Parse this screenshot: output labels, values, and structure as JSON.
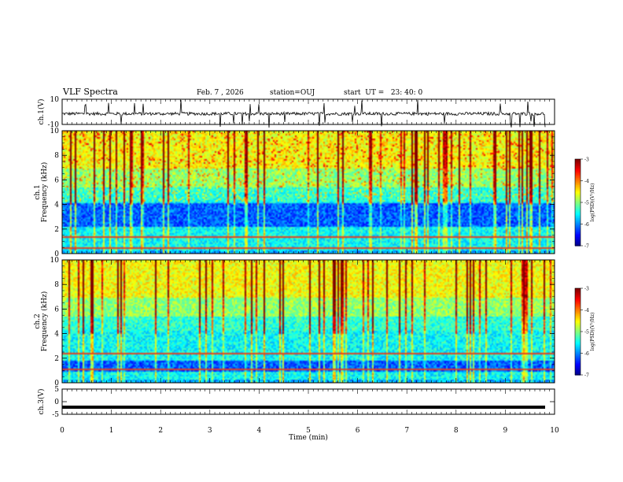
{
  "header": {
    "title": "VLF Spectra",
    "date": "Feb. 7 , 2026",
    "station": "station=OUJ",
    "start": "start  UT =   23: 40: 0"
  },
  "chart_data": [
    {
      "type": "line",
      "name": "ch1-waveform",
      "ylabel": "ch.1(V)",
      "ylim": [
        -10,
        10
      ],
      "yticks": [
        "10",
        "-10"
      ],
      "xlim": [
        0,
        10
      ],
      "baseline": -1.5,
      "noise_amplitude": 2.5
    },
    {
      "type": "heatmap",
      "name": "ch1-spectrogram",
      "ylabel_top": "ch.1",
      "ylabel": "Frequency (kHz)",
      "ylim": [
        0,
        10
      ],
      "yticks": [
        "0",
        "2",
        "4",
        "6",
        "8",
        "10"
      ],
      "xlim": [
        0,
        10
      ],
      "colorbar": {
        "label": "log(PSD)(V²/Hz)",
        "range": [
          -7,
          -3
        ],
        "ticks": [
          "-3",
          "-4",
          "-5",
          "-6",
          "-7"
        ]
      },
      "blue_band_kHz": [
        2.2,
        4.2
      ],
      "hum_lines_kHz": [
        0.5,
        1.4
      ]
    },
    {
      "type": "heatmap",
      "name": "ch2-spectrogram",
      "ylabel_top": "ch.2",
      "ylabel": "Frequency (kHz)",
      "ylim": [
        0,
        10
      ],
      "yticks": [
        "0",
        "2",
        "4",
        "6",
        "8",
        "10"
      ],
      "xlim": [
        0,
        10
      ],
      "colorbar": {
        "label": "log(PSD)(V²/Hz)",
        "range": [
          -7,
          -3
        ],
        "ticks": [
          "-3",
          "-4",
          "-5",
          "-6",
          "-7"
        ]
      },
      "blue_band_kHz": [
        1.0,
        1.8
      ],
      "hum_lines_kHz": [
        1.2,
        2.4
      ]
    },
    {
      "type": "line",
      "name": "ch3-waveform",
      "ylabel": "ch.3(V)",
      "ylim": [
        -5,
        5
      ],
      "yticks": [
        "5",
        "0",
        "-5"
      ],
      "xlim": [
        0,
        10
      ],
      "baseline": -2.2,
      "noise_amplitude": 0
    }
  ],
  "xaxis": {
    "label": "Time (min)",
    "ticks": [
      "0",
      "1",
      "2",
      "3",
      "4",
      "5",
      "6",
      "7",
      "8",
      "9",
      "10"
    ]
  },
  "colors": {
    "axis": "#000000"
  }
}
